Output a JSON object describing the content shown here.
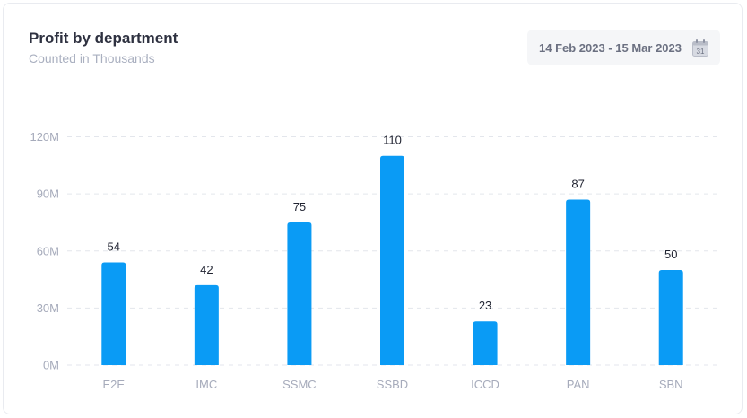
{
  "card": {
    "title": "Profit by department",
    "subtitle": "Counted in Thousands"
  },
  "date_range": {
    "label": "14 Feb 2023 - 15 Mar 2023",
    "icon": "calendar-icon",
    "icon_day": "31"
  },
  "colors": {
    "bar": "#0a9bf5",
    "grid": "#e3e6ec",
    "axis_text": "#a6abbb",
    "value_text": "#1f2230"
  },
  "chart_data": {
    "type": "bar",
    "title": "Profit by department",
    "subtitle": "Counted in Thousands",
    "categories": [
      "E2E",
      "IMC",
      "SSMC",
      "SSBD",
      "ICCD",
      "PAN",
      "SBN"
    ],
    "values": [
      54,
      42,
      75,
      110,
      23,
      87,
      50
    ],
    "y_ticks": [
      "0M",
      "30M",
      "60M",
      "90M",
      "120M"
    ],
    "ylim": [
      0,
      120
    ],
    "grid": true,
    "grid_style": "dashed",
    "legend": "none"
  }
}
